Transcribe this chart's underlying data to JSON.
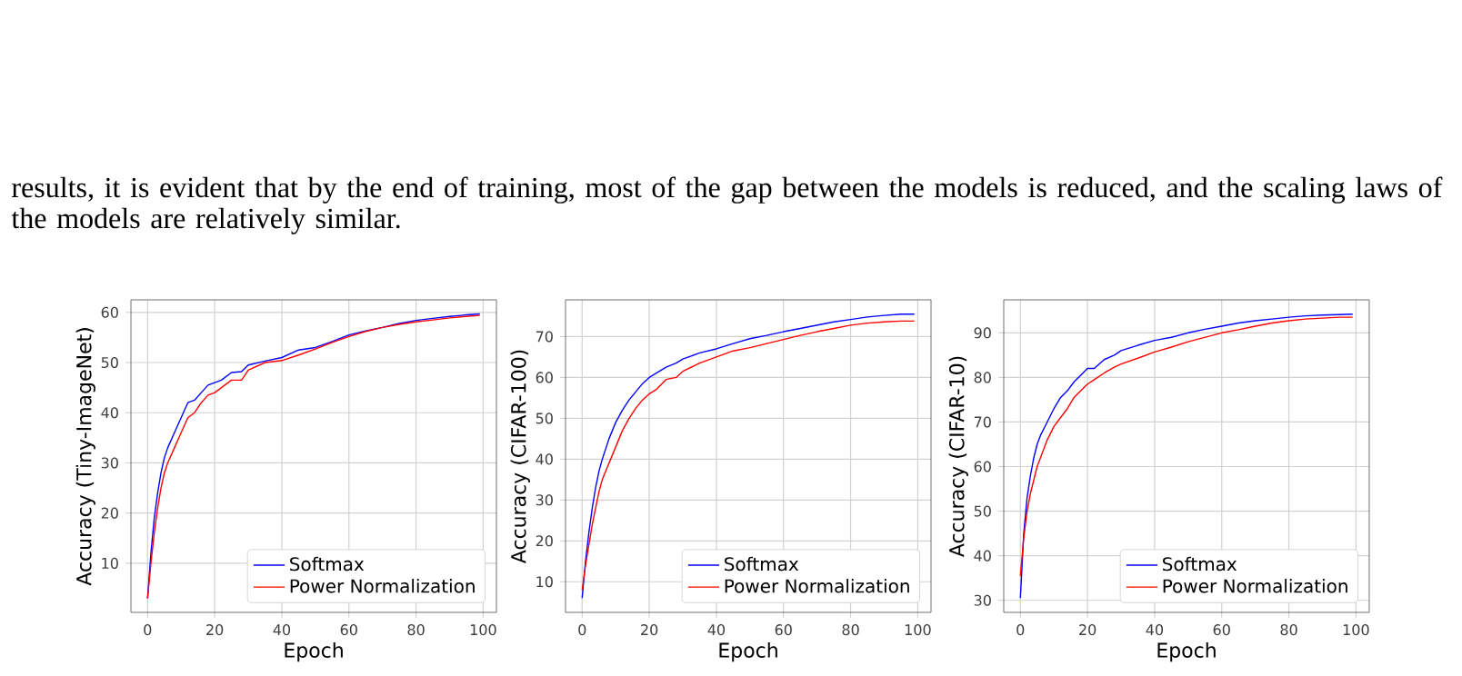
{
  "chart_data": [
    {
      "type": "line",
      "annotations": [
        "results, it is evident that by the end of training, most of the gap between the models is reduced, and the scaling laws of the models are relatively similar."
      ],
      "xlabel": "Epoch",
      "ylabel": "Accuracy (Tiny-ImageNet)",
      "xlim": [
        -4.95,
        103.95
      ],
      "ylim": [
        0.2,
        62.5
      ],
      "xticks": [
        0,
        20,
        40,
        60,
        80,
        100
      ],
      "yticks": [
        10,
        20,
        30,
        40,
        50,
        60
      ],
      "grid": true,
      "legend": "bottom right",
      "line_style": "solid",
      "marker": "none",
      "x": [
        0,
        1,
        2,
        3,
        4,
        5,
        6,
        8,
        10,
        12,
        14,
        16,
        18,
        20,
        22,
        25,
        28,
        30,
        35,
        40,
        45,
        50,
        55,
        60,
        65,
        70,
        75,
        80,
        85,
        90,
        95,
        99
      ],
      "series": [
        {
          "name": "Softmax",
          "color": "#0000ff",
          "values": [
            3,
            12,
            19,
            24,
            28,
            31,
            33,
            36,
            39,
            42,
            42.5,
            44,
            45.5,
            46,
            46.5,
            48,
            48.2,
            49.5,
            50.3,
            51,
            52.5,
            53,
            54.2,
            55.5,
            56.3,
            57,
            57.8,
            58.4,
            58.8,
            59.2,
            59.5,
            59.7
          ]
        },
        {
          "name": "Power Normalization",
          "color": "#ff0000",
          "values": [
            3,
            10,
            16,
            21,
            25,
            28,
            30,
            33,
            36,
            39,
            40,
            42,
            43.5,
            44,
            45,
            46.5,
            46.5,
            48.5,
            50,
            50.4,
            51.5,
            52.7,
            54,
            55.2,
            56.2,
            57,
            57.6,
            58.1,
            58.5,
            58.9,
            59.2,
            59.4
          ]
        }
      ]
    },
    {
      "type": "line",
      "xlabel": "Epoch",
      "ylabel": "Accuracy (CIFAR-100)",
      "xlim": [
        -4.95,
        103.95
      ],
      "ylim": [
        2.5,
        79
      ],
      "xticks": [
        0,
        20,
        40,
        60,
        80,
        100
      ],
      "yticks": [
        10,
        20,
        30,
        40,
        50,
        60,
        70
      ],
      "grid": true,
      "legend": "bottom right",
      "line_style": "solid",
      "marker": "none",
      "x": [
        0,
        1,
        2,
        3,
        4,
        5,
        6,
        8,
        10,
        12,
        14,
        16,
        18,
        20,
        22,
        25,
        28,
        30,
        35,
        40,
        45,
        50,
        55,
        60,
        65,
        70,
        75,
        80,
        85,
        90,
        95,
        99
      ],
      "series": [
        {
          "name": "Softmax",
          "color": "#0000ff",
          "values": [
            6,
            15,
            22,
            28,
            33,
            37,
            40,
            45,
            49,
            52,
            54.5,
            56.5,
            58.5,
            60,
            61,
            62.5,
            63.5,
            64.5,
            66,
            67,
            68.3,
            69.5,
            70.3,
            71.2,
            72,
            72.8,
            73.6,
            74.2,
            74.8,
            75.2,
            75.5,
            75.5
          ]
        },
        {
          "name": "Power Normalization",
          "color": "#ff0000",
          "values": [
            8,
            14,
            19,
            24,
            28,
            32,
            35,
            39,
            43,
            47,
            50,
            52.5,
            54.5,
            56,
            57,
            59.5,
            60,
            61.5,
            63.5,
            65,
            66.5,
            67.3,
            68.3,
            69.3,
            70.3,
            71.2,
            72,
            72.8,
            73.3,
            73.6,
            73.8,
            73.8
          ]
        }
      ]
    },
    {
      "type": "line",
      "xlabel": "Epoch",
      "ylabel": "Accuracy (CIFAR-10)",
      "xlim": [
        -4.95,
        103.95
      ],
      "ylim": [
        27.3,
        97.4
      ],
      "xticks": [
        0,
        20,
        40,
        60,
        80,
        100
      ],
      "yticks": [
        30,
        40,
        50,
        60,
        70,
        80,
        90
      ],
      "grid": true,
      "legend": "bottom right",
      "line_style": "solid",
      "marker": "none",
      "x": [
        0,
        1,
        2,
        3,
        4,
        5,
        6,
        8,
        10,
        12,
        14,
        16,
        18,
        20,
        22,
        25,
        28,
        30,
        35,
        40,
        45,
        50,
        55,
        60,
        65,
        70,
        75,
        80,
        85,
        90,
        95,
        99
      ],
      "series": [
        {
          "name": "Softmax",
          "color": "#0000ff",
          "values": [
            30.5,
            45,
            53,
            58,
            62,
            65,
            67,
            70,
            73,
            75.5,
            77,
            79,
            80.5,
            82,
            82,
            84,
            85,
            86,
            87.2,
            88.3,
            89,
            90,
            90.8,
            91.5,
            92.2,
            92.7,
            93.1,
            93.5,
            93.8,
            94,
            94.1,
            94.2
          ]
        },
        {
          "name": "Power Normalization",
          "color": "#ff0000",
          "values": [
            35.5,
            44,
            50,
            54,
            57,
            60,
            62,
            66,
            69,
            71,
            73,
            75.5,
            77,
            78.5,
            79.5,
            81,
            82.3,
            83,
            84.3,
            85.7,
            86.8,
            88,
            89,
            90,
            90.7,
            91.5,
            92.2,
            92.7,
            93.1,
            93.3,
            93.5,
            93.5
          ]
        }
      ]
    }
  ]
}
